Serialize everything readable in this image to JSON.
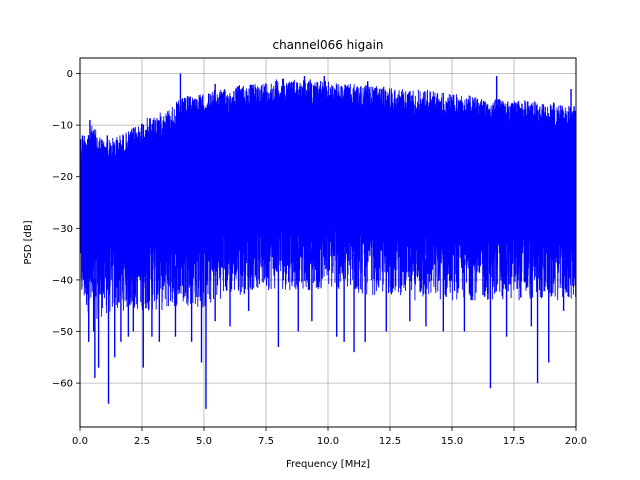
{
  "chart_data": {
    "type": "line",
    "title": "channel066 higain",
    "xlabel": "Frequency [MHz]",
    "ylabel": "PSD [dB]",
    "xlim": [
      0,
      20
    ],
    "ylim": [
      -68.5,
      3
    ],
    "x_ticks": [
      0,
      2.5,
      5,
      7.5,
      10,
      12.5,
      15,
      17.5,
      20
    ],
    "x_tick_labels": [
      "0.0",
      "2.5",
      "5.0",
      "7.5",
      "10.0",
      "12.5",
      "15.0",
      "17.5",
      "20.0"
    ],
    "y_ticks": [
      0,
      -10,
      -20,
      -30,
      -40,
      -50,
      -60
    ],
    "y_tick_labels": [
      "0",
      "−10",
      "−20",
      "−30",
      "−40",
      "−50",
      "−60"
    ],
    "grid": true,
    "series": [
      {
        "color": "#0000ff",
        "upper_envelope": {
          "x": [
            0,
            0.5,
            1,
            1.5,
            2,
            2.5,
            3,
            3.5,
            4,
            4.5,
            5,
            5.5,
            6,
            6.5,
            7,
            7.5,
            8,
            8.5,
            9,
            9.5,
            10,
            10.5,
            11,
            11.5,
            12,
            12.5,
            13,
            13.5,
            14,
            14.5,
            15,
            15.5,
            16,
            16.5,
            17,
            17.5,
            18,
            18.5,
            19,
            19.5,
            20
          ],
          "y": [
            -12,
            -10,
            -13,
            -12,
            -11,
            -9,
            -8,
            -7,
            -5,
            -4,
            -4,
            -3,
            -3,
            -2,
            -2,
            -1.5,
            -1,
            -1,
            -1,
            -1,
            -1.5,
            -2,
            -2,
            -2,
            -2.5,
            -2.5,
            -3,
            -3,
            -3,
            -3.5,
            -4,
            -4,
            -4.5,
            -4.5,
            -5,
            -5,
            -5,
            -5.5,
            -5.5,
            -6,
            -6
          ]
        },
        "lower_envelope": {
          "x": [
            0,
            0.5,
            1,
            1.5,
            2,
            2.5,
            3,
            3.5,
            4,
            4.5,
            5,
            5.5,
            6,
            6.5,
            7,
            7.5,
            8,
            8.5,
            9,
            9.5,
            10,
            10.5,
            11,
            11.5,
            12,
            12.5,
            13,
            13.5,
            14,
            14.5,
            15,
            15.5,
            16,
            16.5,
            17,
            17.5,
            18,
            18.5,
            19,
            19.5,
            20
          ],
          "y": [
            -44,
            -48,
            -47,
            -46,
            -46,
            -46,
            -46,
            -46,
            -45,
            -45,
            -46,
            -44,
            -43,
            -43,
            -42,
            -42,
            -42,
            -42,
            -42,
            -42,
            -42,
            -42,
            -43,
            -43,
            -43,
            -43,
            -43,
            -44,
            -44,
            -44,
            -44,
            -44,
            -44,
            -44,
            -44,
            -44,
            -44,
            -44,
            -44,
            -44,
            -44
          ]
        },
        "peaks": [
          {
            "x": 0.1,
            "y": -12
          },
          {
            "x": 0.4,
            "y": -9
          },
          {
            "x": 1.1,
            "y": -12
          },
          {
            "x": 2.4,
            "y": -12
          },
          {
            "x": 4.05,
            "y": 0
          },
          {
            "x": 4.25,
            "y": -5
          },
          {
            "x": 5.45,
            "y": -2
          },
          {
            "x": 6.5,
            "y": -3
          },
          {
            "x": 8.2,
            "y": -1
          },
          {
            "x": 9.05,
            "y": -0.5
          },
          {
            "x": 9.85,
            "y": -0.5
          },
          {
            "x": 11.6,
            "y": -1.5
          },
          {
            "x": 16.8,
            "y": -0.5
          },
          {
            "x": 19.8,
            "y": -3
          }
        ],
        "dips": [
          {
            "x": 0.35,
            "y": -52
          },
          {
            "x": 0.55,
            "y": -50
          },
          {
            "x": 0.6,
            "y": -59
          },
          {
            "x": 0.75,
            "y": -57
          },
          {
            "x": 1.15,
            "y": -64
          },
          {
            "x": 1.4,
            "y": -55
          },
          {
            "x": 1.65,
            "y": -52
          },
          {
            "x": 1.95,
            "y": -51
          },
          {
            "x": 2.15,
            "y": -50
          },
          {
            "x": 2.55,
            "y": -57
          },
          {
            "x": 2.9,
            "y": -51
          },
          {
            "x": 3.2,
            "y": -52
          },
          {
            "x": 3.85,
            "y": -51
          },
          {
            "x": 4.5,
            "y": -52
          },
          {
            "x": 4.9,
            "y": -56
          },
          {
            "x": 5.08,
            "y": -65
          },
          {
            "x": 5.45,
            "y": -48
          },
          {
            "x": 6.05,
            "y": -49
          },
          {
            "x": 6.8,
            "y": -46
          },
          {
            "x": 8.0,
            "y": -53
          },
          {
            "x": 8.8,
            "y": -50
          },
          {
            "x": 9.35,
            "y": -48
          },
          {
            "x": 10.35,
            "y": -51
          },
          {
            "x": 10.65,
            "y": -52
          },
          {
            "x": 11.05,
            "y": -54
          },
          {
            "x": 11.5,
            "y": -52
          },
          {
            "x": 12.35,
            "y": -50
          },
          {
            "x": 13.3,
            "y": -48
          },
          {
            "x": 13.95,
            "y": -49
          },
          {
            "x": 14.65,
            "y": -50
          },
          {
            "x": 15.5,
            "y": -50
          },
          {
            "x": 16.55,
            "y": -61
          },
          {
            "x": 17.2,
            "y": -51
          },
          {
            "x": 18.2,
            "y": -49
          },
          {
            "x": 18.45,
            "y": -60
          },
          {
            "x": 18.9,
            "y": -56
          },
          {
            "x": 19.5,
            "y": -46
          }
        ]
      }
    ]
  }
}
